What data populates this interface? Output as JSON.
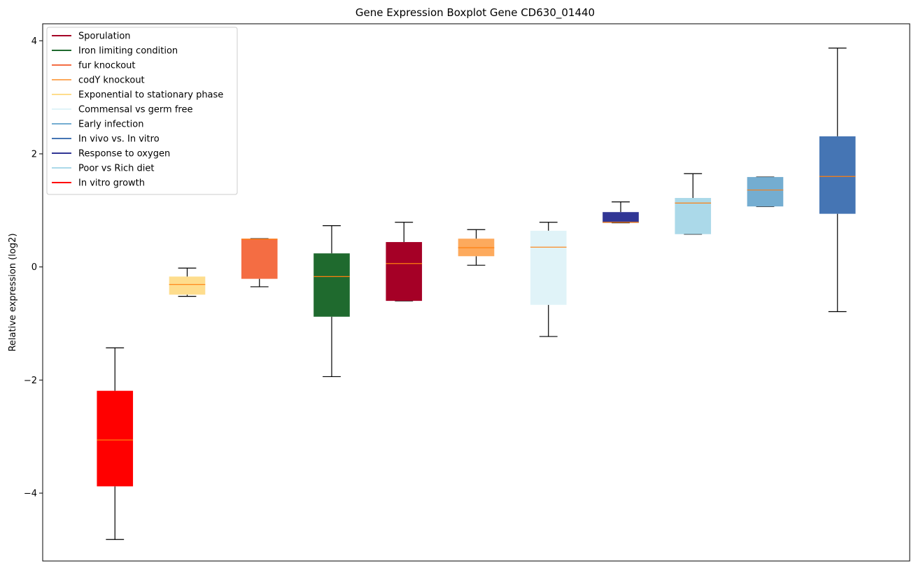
{
  "chart_data": {
    "type": "box",
    "title": "Gene Expression Boxplot Gene CD630_01440",
    "xlabel": "",
    "ylabel": "Relative expression (log2)",
    "ylim": [
      -5.2,
      4.3
    ],
    "yticks": [
      -4,
      -2,
      0,
      2,
      4
    ],
    "ytick_labels": [
      "−4",
      "−2",
      "0",
      "2",
      "4"
    ],
    "legend_position": "top-left",
    "median_color": "#ff7f0e",
    "series": [
      {
        "name": "In vitro growth",
        "color": "#ff0000",
        "whisker_low": -4.82,
        "q1": -3.88,
        "median": -3.06,
        "q3": -2.19,
        "whisker_high": -1.43
      },
      {
        "name": "Exponential to stationary phase",
        "color": "#fedd8d",
        "whisker_low": -0.52,
        "q1": -0.49,
        "median": -0.31,
        "q3": -0.17,
        "whisker_high": -0.02
      },
      {
        "name": "fur knockout",
        "color": "#f46d43",
        "whisker_low": -0.35,
        "q1": -0.21,
        "median": 0.49,
        "q3": 0.5,
        "whisker_high": 0.5
      },
      {
        "name": "Iron limiting condition",
        "color": "#1f6a2e",
        "whisker_low": -1.94,
        "q1": -0.88,
        "median": -0.17,
        "q3": 0.24,
        "whisker_high": 0.73
      },
      {
        "name": "Sporulation",
        "color": "#a50026",
        "whisker_low": -0.6,
        "q1": -0.6,
        "median": 0.06,
        "q3": 0.44,
        "whisker_high": 0.79
      },
      {
        "name": "codY knockout",
        "color": "#fdaa5d",
        "whisker_low": 0.03,
        "q1": 0.19,
        "median": 0.34,
        "q3": 0.5,
        "whisker_high": 0.66
      },
      {
        "name": "Commensal vs germ free",
        "color": "#e0f3f8",
        "whisker_low": -1.23,
        "q1": -0.67,
        "median": 0.35,
        "q3": 0.64,
        "whisker_high": 0.79
      },
      {
        "name": "Response to oxygen",
        "color": "#313695",
        "whisker_low": 0.78,
        "q1": 0.78,
        "median": 0.79,
        "q3": 0.97,
        "whisker_high": 1.15
      },
      {
        "name": "Poor vs Rich diet",
        "color": "#abd9e9",
        "whisker_low": 0.58,
        "q1": 0.58,
        "median": 1.13,
        "q3": 1.22,
        "whisker_high": 1.65
      },
      {
        "name": "Early infection",
        "color": "#74add1",
        "whisker_low": 1.07,
        "q1": 1.07,
        "median": 1.36,
        "q3": 1.59,
        "whisker_high": 1.59
      },
      {
        "name": "In vivo vs. In vitro",
        "color": "#4575b4",
        "whisker_low": -0.79,
        "q1": 0.94,
        "median": 1.6,
        "q3": 2.31,
        "whisker_high": 3.87
      }
    ],
    "legend": [
      {
        "label": "Sporulation",
        "color": "#a50026"
      },
      {
        "label": "Iron limiting condition",
        "color": "#1f6a2e"
      },
      {
        "label": "fur knockout",
        "color": "#f46d43"
      },
      {
        "label": "codY knockout",
        "color": "#fdaa5d"
      },
      {
        "label": "Exponential to stationary phase",
        "color": "#fedd8d"
      },
      {
        "label": "Commensal vs germ free",
        "color": "#e0f3f8"
      },
      {
        "label": "Early infection",
        "color": "#74add1"
      },
      {
        "label": "In vivo vs. In vitro",
        "color": "#4575b4"
      },
      {
        "label": "Response to oxygen",
        "color": "#313695"
      },
      {
        "label": "Poor vs Rich diet",
        "color": "#abd9e9"
      },
      {
        "label": "In vitro growth",
        "color": "#ff0000"
      }
    ]
  }
}
